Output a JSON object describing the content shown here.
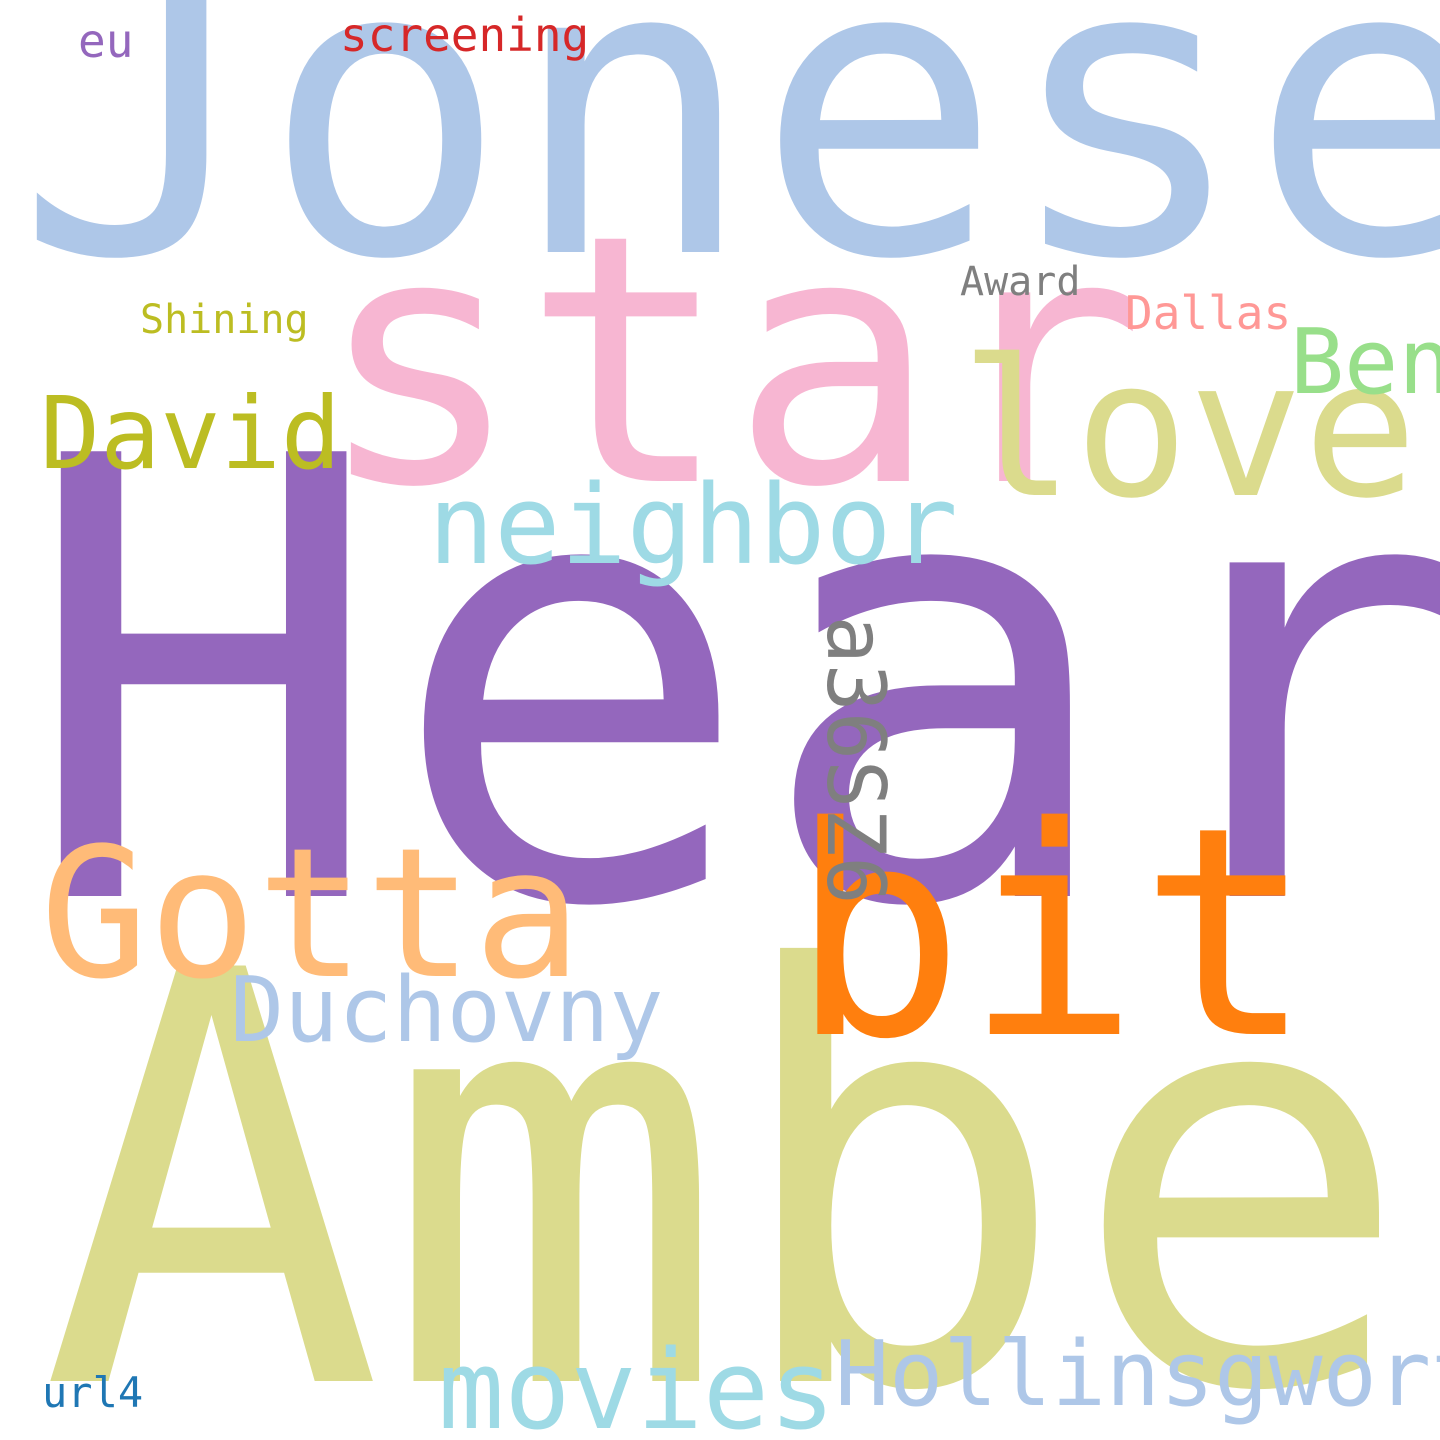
{
  "background": "#ffffff",
  "words": {
    "heard": {
      "text": "Heard",
      "color": "#9467bd"
    },
    "amber": {
      "text": "Amber",
      "color": "#dbdb8d"
    },
    "joneses": {
      "text": "Joneses",
      "color": "#aec7e8"
    },
    "star": {
      "text": "star",
      "color": "#f7b6d2"
    },
    "bit": {
      "text": "bit",
      "color": "#ff7f0e"
    },
    "love": {
      "text": "love",
      "color": "#dbdb8d"
    },
    "gotta": {
      "text": "Gotta",
      "color": "#ffbb78"
    },
    "neighbor": {
      "text": "neighbor",
      "color": "#9edae5"
    },
    "movies": {
      "text": "movies",
      "color": "#9edae5"
    },
    "hollingsworth": {
      "text": "Hollinsgworth",
      "color": "#aec7e8"
    },
    "duchovny": {
      "text": "Duchovny",
      "color": "#aec7e8"
    },
    "david": {
      "text": "David",
      "color": "#bcbd22"
    },
    "ben": {
      "text": "Ben",
      "color": "#98df8a"
    },
    "dallas": {
      "text": "Dallas",
      "color": "#ff9896"
    },
    "award": {
      "text": "Award",
      "color": "#7f7f7f"
    },
    "shining": {
      "text": "Shining",
      "color": "#bcbd22"
    },
    "screening": {
      "text": "screening",
      "color": "#d62728"
    },
    "eu": {
      "text": "eu",
      "color": "#9467bd"
    },
    "url4": {
      "text": "url4",
      "color": "#1f77b4"
    },
    "code": {
      "text": "a36SZ6",
      "color": "#7f7f7f"
    }
  }
}
